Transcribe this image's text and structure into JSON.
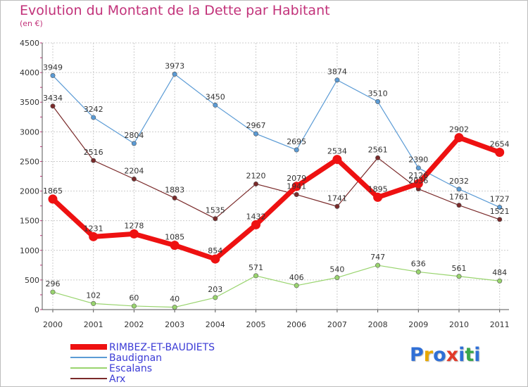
{
  "title": "Evolution du Montant de la Dette par Habitant",
  "subtitle": "(en €)",
  "logo": {
    "text": "Proxiti",
    "letter_colors": [
      "#2f6fd6",
      "#e8a800",
      "#2f6fd6",
      "#e23a2a",
      "#2f6fd6",
      "#3aa64a",
      "#2f6fd6"
    ]
  },
  "chart_data": {
    "type": "line",
    "categories": [
      "2000",
      "2001",
      "2002",
      "2003",
      "2004",
      "2005",
      "2006",
      "2007",
      "2008",
      "2009",
      "2010",
      "2011"
    ],
    "ylim": [
      0,
      4500
    ],
    "yticks": [
      0,
      500,
      1000,
      1500,
      2000,
      2500,
      3000,
      3500,
      4000,
      4500
    ],
    "grid": true,
    "legend_position": "bottom-left",
    "series": [
      {
        "name": "Baudignan",
        "color": "#5b9bd5",
        "values": [
          3949,
          3242,
          2804,
          3973,
          3450,
          2967,
          2695,
          3874,
          3510,
          2390,
          2032,
          1727
        ],
        "labels": [
          "3949",
          "3242",
          "2804",
          "3973",
          "3450",
          "2967",
          "2695",
          "3874",
          "3510",
          "2390",
          "2032",
          "1727"
        ]
      },
      {
        "name": "Arx",
        "color": "#7a2a2a",
        "values": [
          3434,
          2516,
          2204,
          1883,
          1535,
          2120,
          1941,
          1741,
          2561,
          2036,
          1761,
          1521
        ],
        "labels": [
          "3434",
          "2516",
          "2204",
          "1883",
          "1535",
          "2120",
          "1941",
          "1741",
          "2561",
          "2036",
          "1761",
          "1521"
        ]
      },
      {
        "name": "Escalans",
        "color": "#99d46e",
        "values": [
          296,
          102,
          60,
          40,
          203,
          571,
          406,
          540,
          747,
          636,
          561,
          484
        ],
        "labels": [
          "296",
          "102",
          "60",
          "40",
          "203",
          "571",
          "406",
          "540",
          "747",
          "636",
          "561",
          "484"
        ]
      },
      {
        "name": "RIMBEZ-ET-BAUDIETS",
        "color": "#ee1111",
        "values": [
          1865,
          1231,
          1278,
          1085,
          854,
          1432,
          2079,
          2534,
          1895,
          2126,
          2902,
          2654
        ],
        "labels": [
          "1865",
          "1231",
          "1278",
          "1085",
          "854",
          "1432",
          "2079",
          "2534",
          "1895",
          "2126",
          "2902",
          "2654"
        ]
      }
    ],
    "legend_order": [
      "RIMBEZ-ET-BAUDIETS",
      "Baudignan",
      "Escalans",
      "Arx"
    ]
  }
}
